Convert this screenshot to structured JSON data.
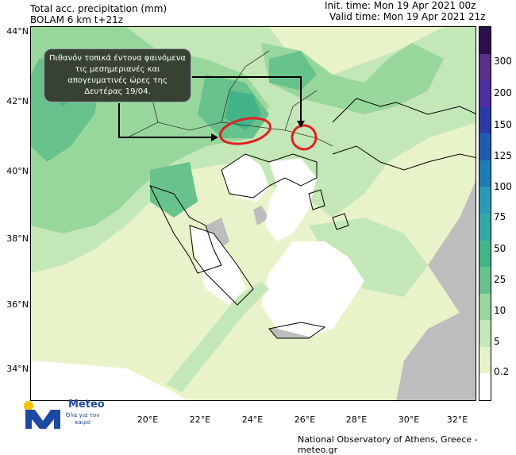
{
  "header": {
    "title_line1": "Total acc. precipitation (mm)",
    "title_line2": "BOLAM 6 km t+21z",
    "init_time": "Init. time: Mon 19 Apr 2021 00z",
    "valid_time": "Valid time: Mon 19 Apr 2021 21z"
  },
  "map": {
    "lat_labels": [
      "44°N",
      "42°N",
      "40°N",
      "38°N",
      "36°N",
      "34°N"
    ],
    "lon_labels": [
      "20°E",
      "22°E",
      "24°E",
      "26°E",
      "28°E",
      "30°E",
      "32°E"
    ],
    "land_outside_domain_color": "#bdbdbd",
    "sea_dry_color": "#ffffff",
    "highlight_circle_color": "#e02020"
  },
  "callout": {
    "text": "Πιθανόν τοπικά έντονα φαινόμενα τις μεσημεριανές και απογευματινές ώρες της Δευτέρας 19/04."
  },
  "colorbar": {
    "labels": [
      "300",
      "200",
      "150",
      "125",
      "100",
      "75",
      "50",
      "25",
      "10",
      "5",
      "0.2"
    ],
    "colors": [
      "#2a0f4a",
      "#5a2e8a",
      "#4d2fa0",
      "#2c3aa8",
      "#215dae",
      "#1f7db6",
      "#2c99b6",
      "#33a8a6",
      "#43b48a",
      "#67c28b",
      "#98d79c",
      "#c4e7b7",
      "#e5f2c8",
      "#ffffff"
    ]
  },
  "logo": {
    "brand": "Meteo",
    "tagline": "Όλα για τον καιρό"
  },
  "footer": {
    "credit": "National Observatory of Athens, Greece - meteo.gr"
  }
}
